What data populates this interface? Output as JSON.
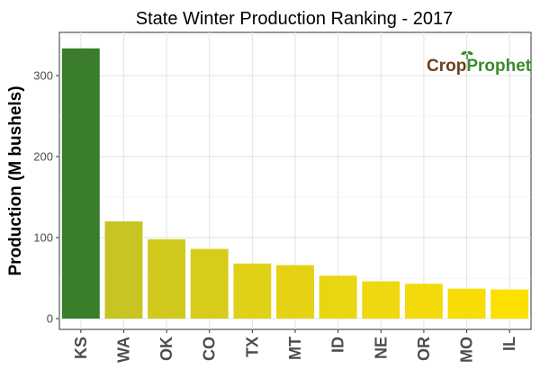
{
  "chart_data": {
    "type": "bar",
    "title": "State Winter  Production Ranking - 2017",
    "xlabel": "",
    "ylabel": "Production (M bushels)",
    "categories": [
      "KS",
      "WA",
      "OK",
      "CO",
      "TX",
      "MT",
      "ID",
      "NE",
      "OR",
      "MO",
      "IL"
    ],
    "values": [
      333.6,
      120,
      98,
      86,
      68,
      66,
      53,
      46,
      43,
      37,
      36
    ],
    "bar_colors": [
      "#3a7d2c",
      "#c8c424",
      "#d1c91e",
      "#d8cc1a",
      "#e0d018",
      "#e5d215",
      "#ead512",
      "#efd80f",
      "#f3da0b",
      "#f8dc06",
      "#fddf00"
    ],
    "ylim": [
      0,
      350
    ],
    "yticks": [
      0,
      100,
      200,
      300
    ],
    "grid": true,
    "legend": "none"
  },
  "logo": {
    "text_crop": "Crop",
    "text_prophet": "Prophet",
    "crop_color": "#6b3e1e",
    "prophet_color": "#3a8a2c",
    "sprout_color": "#3a8a2c"
  }
}
